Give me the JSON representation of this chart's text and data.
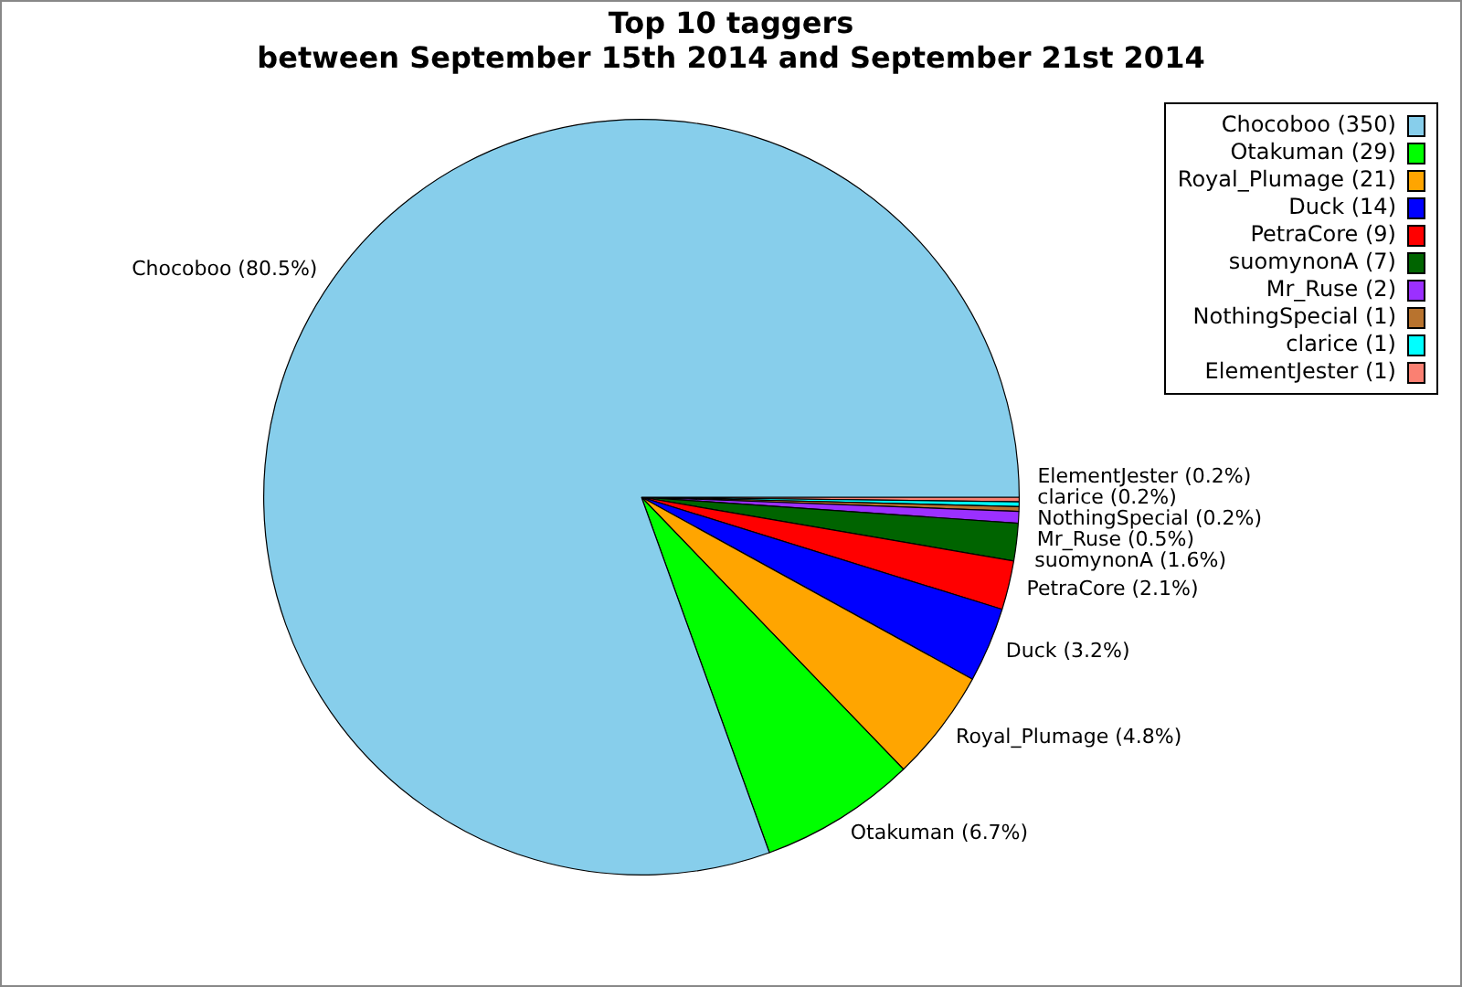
{
  "chart_data": {
    "type": "pie",
    "title": "Top 10 taggers",
    "subtitle": "between September 15th 2014 and September 21st 2014",
    "categories": [
      "Chocoboo (350)",
      "Otakuman (29)",
      "Royal_Plumage (21)",
      "Duck (14)",
      "PetraCore (9)",
      "suomynonA (7)",
      "Mr_Ruse (2)",
      "NothingSpecial (1)",
      "clarice (1)",
      "ElementJester (1)"
    ],
    "values": [
      80.5,
      6.7,
      4.8,
      3.2,
      2.1,
      1.6,
      0.5,
      0.2,
      0.2,
      0.2
    ],
    "value_labels": [
      "Chocoboo (80.5%)",
      "Otakuman (6.7%)",
      "Royal_Plumage (4.8%)",
      "Duck (3.2%)",
      "PetraCore (2.1%)",
      "suomynonA (1.6%)",
      "Mr_Ruse (0.5%)",
      "NothingSpecial (0.2%)",
      "clarice (0.2%)",
      "ElementJester (0.2%)"
    ],
    "colors": [
      "#87ceeb",
      "#00ff00",
      "#ffa500",
      "#0000ff",
      "#ff0000",
      "#006400",
      "#9b30ff",
      "#b8732e",
      "#00ffff",
      "#fa8072"
    ],
    "legend": "top right"
  }
}
